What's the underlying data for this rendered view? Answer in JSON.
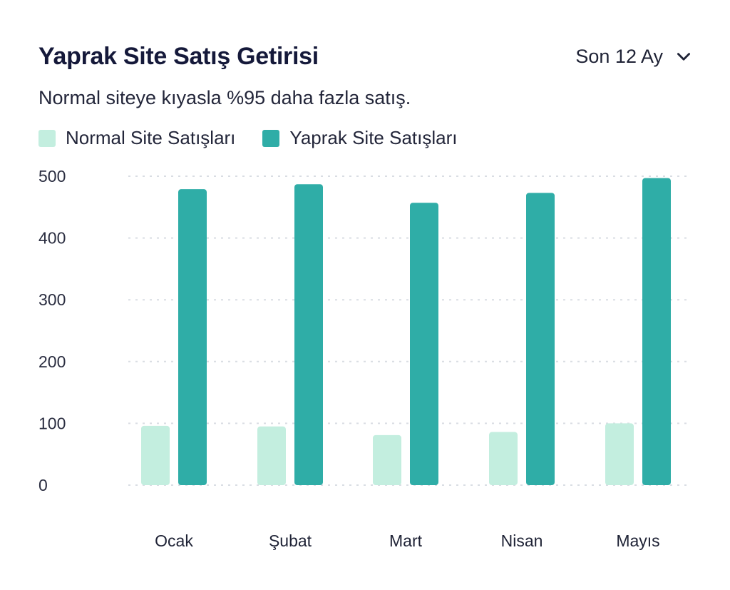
{
  "header": {
    "title": "Yaprak Site Satış Getirisi",
    "period_label": "Son 12 Ay",
    "subtitle": "Normal siteye kıyasla %95 daha fazla satış."
  },
  "icons": {
    "period_toggle": "chevron-down-icon"
  },
  "colors": {
    "normal": "#c3eedf",
    "yaprak": "#2fada7",
    "grid": "#d9dde3"
  },
  "chart_data": {
    "type": "bar",
    "categories": [
      "Ocak",
      "Şubat",
      "Mart",
      "Nisan",
      "Mayıs"
    ],
    "series": [
      {
        "name": "Normal Site Satışları",
        "values": [
          96,
          95,
          81,
          86,
          100
        ]
      },
      {
        "name": "Yaprak Site Satışları",
        "values": [
          479,
          487,
          457,
          473,
          497
        ]
      }
    ],
    "yticks": [
      0,
      100,
      200,
      300,
      400,
      500
    ],
    "ylim": [
      0,
      500
    ],
    "grid": true,
    "legend": "top-left"
  }
}
